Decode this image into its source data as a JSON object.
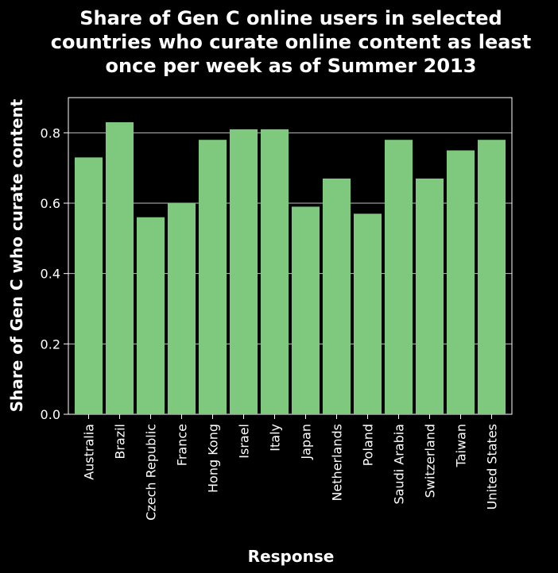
{
  "chart_data": {
    "type": "bar",
    "title_lines": [
      "Share of Gen C online users in selected",
      "countries who curate online content as least",
      "once per week as of Summer 2013"
    ],
    "xlabel": "Response",
    "ylabel": "Share of Gen C who curate content",
    "categories": [
      "Australia",
      "Brazil",
      "Czech Republic",
      "France",
      "Hong Kong",
      "Israel",
      "Italy",
      "Japan",
      "Netherlands",
      "Poland",
      "Saudi Arabia",
      "Switzerland",
      "Taiwan",
      "United States"
    ],
    "values": [
      0.73,
      0.83,
      0.56,
      0.6,
      0.78,
      0.81,
      0.81,
      0.59,
      0.67,
      0.57,
      0.78,
      0.67,
      0.75,
      0.78
    ],
    "ylim": [
      0,
      0.9
    ],
    "yticks": [
      0.0,
      0.2,
      0.4,
      0.6,
      0.8
    ],
    "ytick_labels": [
      "0.0",
      "0.2",
      "0.4",
      "0.6",
      "0.8"
    ],
    "grid": true,
    "colors": {
      "bar": "#7fc97f",
      "background": "#000000",
      "grid": "#ffffff",
      "text": "#ffffff"
    }
  }
}
